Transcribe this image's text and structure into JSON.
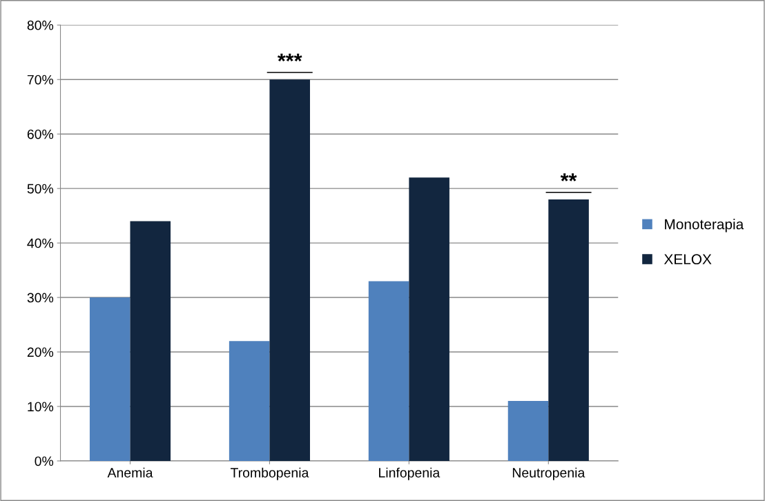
{
  "chart_data": {
    "type": "bar",
    "categories": [
      "Anemia",
      "Trombopenia",
      "Linfopenia",
      "Neutropenia"
    ],
    "series": [
      {
        "name": "Monoterapia",
        "color": "#4f81bd",
        "values": [
          30,
          22,
          33,
          11
        ]
      },
      {
        "name": "XELOX",
        "color": "#12263f",
        "values": [
          44,
          70,
          52,
          48
        ]
      }
    ],
    "ylim": [
      0,
      80
    ],
    "yticks": [
      {
        "value": 0,
        "label": "0%"
      },
      {
        "value": 10,
        "label": "10%"
      },
      {
        "value": 20,
        "label": "20%"
      },
      {
        "value": 30,
        "label": "30%"
      },
      {
        "value": 40,
        "label": "40%"
      },
      {
        "value": 50,
        "label": "50%"
      },
      {
        "value": 60,
        "label": "60%"
      },
      {
        "value": 70,
        "label": "70%"
      },
      {
        "value": 80,
        "label": "80%"
      }
    ],
    "annotations": [
      {
        "text": "***",
        "x": "Trombopenia",
        "y": 70
      },
      {
        "text": "**",
        "x": "Neutropenia",
        "y": 48
      }
    ],
    "grid": "y",
    "legend": "right"
  }
}
